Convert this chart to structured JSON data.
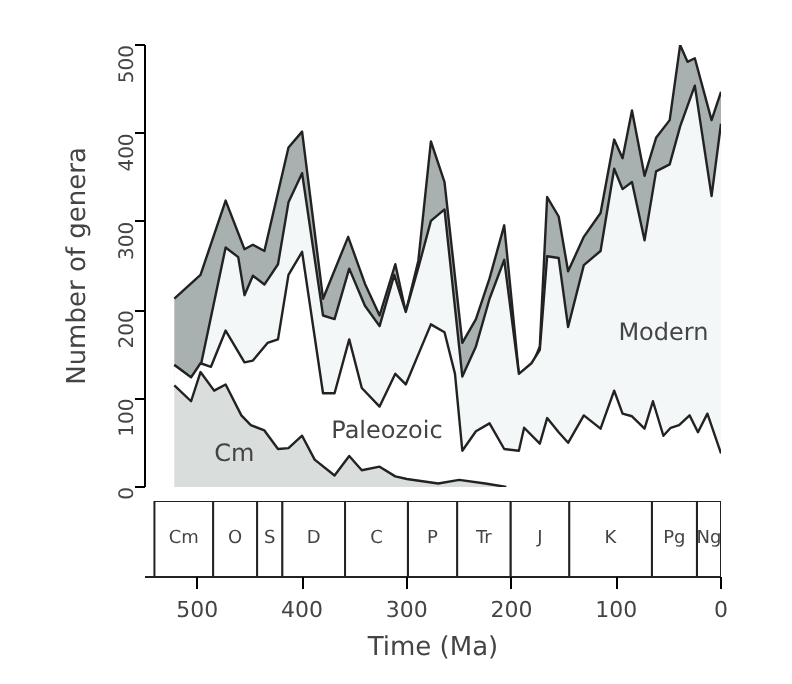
{
  "chart_data": [
    {
      "type": "area",
      "ylabel": "Number of genera",
      "xlim": [
        550,
        0
      ],
      "ylim": [
        0,
        500
      ],
      "xticks": [
        500,
        400,
        300,
        200,
        100,
        0
      ],
      "yticks": [
        0,
        100,
        200,
        300,
        400,
        500
      ],
      "grid": false,
      "tick_labels": "y",
      "series": [
        {
          "color": "#a9b1b0",
          "x": [
            522,
            497,
            473,
            455,
            447,
            436,
            413,
            400,
            380,
            356,
            340,
            326,
            311,
            301,
            289,
            277,
            264,
            247,
            234,
            221,
            207,
            193,
            181,
            173,
            166,
            155,
            146,
            131,
            115,
            102,
            94,
            85,
            73,
            62,
            49,
            39,
            32,
            25,
            9,
            0
          ],
          "values": [
            213,
            240,
            324,
            269,
            274,
            267,
            384,
            402,
            213,
            283,
            230,
            194,
            252,
            198,
            256,
            391,
            345,
            163,
            190,
            236,
            296,
            128,
            136,
            159,
            328,
            306,
            244,
            283,
            310,
            393,
            372,
            426,
            352,
            395,
            415,
            500,
            481,
            485,
            415,
            447
          ]
        },
        {
          "color": "#f3f7f7",
          "x": [
            522,
            506,
            497,
            473,
            461,
            455,
            447,
            436,
            423,
            413,
            400,
            380,
            369,
            355,
            340,
            326,
            312,
            301,
            289,
            277,
            264,
            247,
            234,
            221,
            207,
            193,
            181,
            173,
            166,
            155,
            146,
            131,
            115,
            102,
            94,
            85,
            73,
            62,
            49,
            39,
            25,
            9,
            0
          ],
          "values": [
            138,
            124,
            136,
            271,
            260,
            217,
            239,
            229,
            252,
            322,
            355,
            194,
            190,
            247,
            205,
            182,
            240,
            198,
            248,
            301,
            314,
            125,
            159,
            213,
            257,
            128,
            140,
            155,
            261,
            259,
            181,
            251,
            267,
            360,
            337,
            345,
            279,
            357,
            365,
            408,
            454,
            329,
            411
          ]
        },
        {
          "color": "#ffffff",
          "x": [
            522,
            506,
            497,
            487,
            473,
            455,
            447,
            433,
            423,
            413,
            400,
            380,
            369,
            355,
            343,
            326,
            311,
            301,
            289,
            277,
            264,
            254,
            247,
            234,
            221,
            207,
            193,
            188,
            173,
            166,
            155,
            146,
            131,
            115,
            102,
            94,
            85,
            73,
            65,
            55,
            48,
            40,
            30,
            22,
            13,
            0
          ],
          "values": [
            138,
            124,
            140,
            136,
            177,
            141,
            143,
            163,
            167,
            240,
            266,
            106,
            106,
            167,
            112,
            91,
            128,
            116,
            150,
            184,
            175,
            128,
            41,
            63,
            72,
            43,
            41,
            67,
            49,
            78,
            62,
            50,
            81,
            66,
            109,
            83,
            80,
            66,
            97,
            58,
            67,
            70,
            81,
            62,
            83,
            38
          ]
        },
        {
          "color": "#d9dedd",
          "x": [
            522,
            506,
            497,
            484,
            473,
            458,
            449,
            436,
            423,
            413,
            400,
            388,
            369,
            355,
            343,
            326,
            311,
            300,
            270,
            250,
            225,
            205
          ],
          "values": [
            115,
            97,
            130,
            109,
            116,
            81,
            70,
            64,
            43,
            44,
            58,
            31,
            13,
            35,
            19,
            23,
            12,
            9,
            4,
            8,
            4,
            0
          ]
        }
      ],
      "annotations": [
        "Modern",
        "Paleozoic",
        "Cm"
      ]
    },
    {
      "type": "bar",
      "orientation": "horizontal",
      "stacked": true,
      "xlabel": "Time (Ma)",
      "xlim": [
        550,
        0
      ],
      "xticks": [
        500,
        400,
        300,
        200,
        100,
        0
      ],
      "tick_labels": "x",
      "categories": [
        null
      ],
      "series": [
        {
          "name": "Ng",
          "color": "#ffffff",
          "values": [
            23
          ]
        },
        {
          "name": "Pg",
          "color": "#ffffff",
          "values": [
            43
          ]
        },
        {
          "name": "K",
          "color": "#ffffff",
          "values": [
            79
          ]
        },
        {
          "name": "J",
          "color": "#ffffff",
          "values": [
            56
          ]
        },
        {
          "name": "Tr",
          "color": "#ffffff",
          "values": [
            51
          ]
        },
        {
          "name": "P",
          "color": "#ffffff",
          "values": [
            47
          ]
        },
        {
          "name": "C",
          "color": "#ffffff",
          "values": [
            60
          ]
        },
        {
          "name": "D",
          "color": "#ffffff",
          "values": [
            60
          ]
        },
        {
          "name": "S",
          "color": "#ffffff",
          "values": [
            24
          ]
        },
        {
          "name": "O",
          "color": "#ffffff",
          "values": [
            42
          ]
        },
        {
          "name": "Cm",
          "color": "#ffffff",
          "values": [
            56
          ]
        }
      ]
    }
  ]
}
